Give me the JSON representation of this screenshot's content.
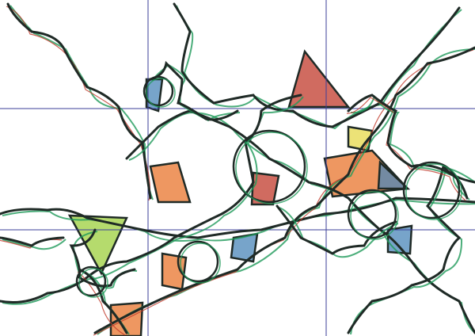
{
  "artwork": {
    "colors": {
      "background": "#ffffff",
      "grid": "#3b3f9a",
      "ink": "#1f2a26",
      "green": "#1f9a5a",
      "red": "#c0392b",
      "orange": "#e8742c",
      "yellow": "#e6d84a",
      "blue": "#4a86b8",
      "lime": "#9ccf3c"
    }
  }
}
